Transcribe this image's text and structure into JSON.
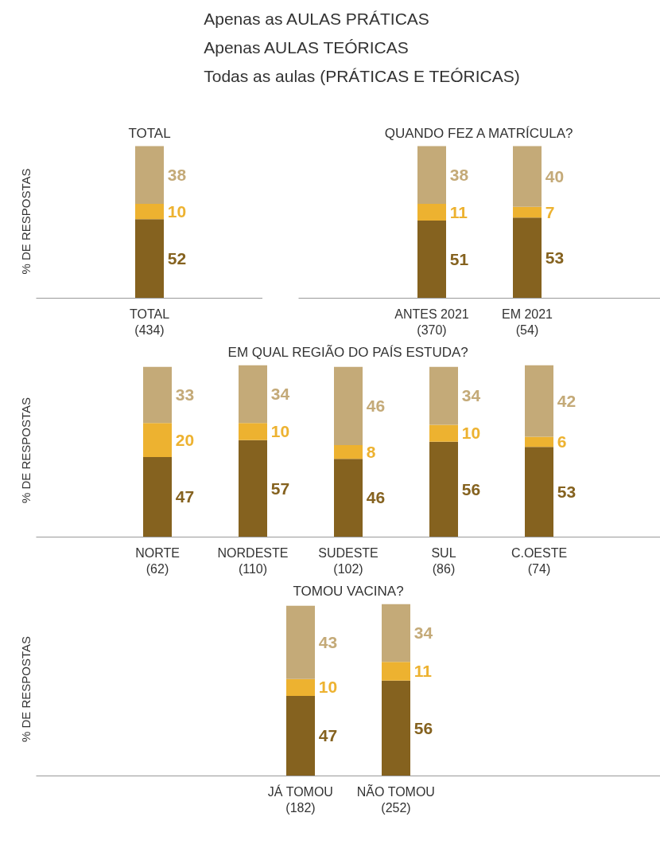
{
  "chart_data": [
    {
      "type": "bar",
      "stacked": true,
      "data_labels": true,
      "grid": false,
      "legend": "top",
      "title": "TOTAL",
      "ylabel": "% DE RESPOSTAS",
      "categories": [
        "TOTAL\n(434)"
      ],
      "series": [
        {
          "name": "Todas as aulas (PRÁTICAS E TEÓRICAS)",
          "color": "#85621f",
          "values": [
            52
          ]
        },
        {
          "name": "Apenas AULAS TEÓRICAS",
          "color": "#edb230",
          "values": [
            10
          ]
        },
        {
          "name": "Apenas as AULAS PRÁTICAS",
          "color": "#c4aa78",
          "values": [
            38
          ]
        }
      ]
    },
    {
      "type": "bar",
      "stacked": true,
      "data_labels": true,
      "grid": false,
      "title": "QUANDO FEZ A MATRÍCULA?",
      "categories": [
        "ANTES 2021\n(370)",
        "EM 2021\n(54)"
      ],
      "series": [
        {
          "color": "#85621f",
          "values": [
            51,
            53
          ]
        },
        {
          "color": "#edb230",
          "values": [
            11,
            7
          ]
        },
        {
          "color": "#c4aa78",
          "values": [
            38,
            40
          ]
        }
      ]
    },
    {
      "type": "bar",
      "stacked": true,
      "data_labels": true,
      "grid": false,
      "title": "EM QUAL REGIÃO DO PAÍS ESTUDA?",
      "ylabel": "% DE RESPOSTAS",
      "categories": [
        "NORTE\n(62)",
        "NORDESTE\n(110)",
        "SUDESTE\n(102)",
        "SUL\n(86)",
        "C.OESTE\n(74)"
      ],
      "series": [
        {
          "color": "#85621f",
          "values": [
            47,
            57,
            46,
            56,
            53
          ]
        },
        {
          "color": "#edb230",
          "values": [
            20,
            10,
            8,
            10,
            6
          ]
        },
        {
          "color": "#c4aa78",
          "values": [
            33,
            34,
            46,
            34,
            42
          ]
        }
      ]
    },
    {
      "type": "bar",
      "stacked": true,
      "data_labels": true,
      "grid": false,
      "title": "TOMOU VACINA?",
      "ylabel": "% DE RESPOSTAS",
      "categories": [
        "JÁ TOMOU\n(182)",
        "NÃO TOMOU\n(252)"
      ],
      "series": [
        {
          "color": "#85621f",
          "values": [
            47,
            56
          ]
        },
        {
          "color": "#edb230",
          "values": [
            10,
            11
          ]
        },
        {
          "color": "#c4aa78",
          "values": [
            43,
            34
          ]
        }
      ]
    }
  ]
}
